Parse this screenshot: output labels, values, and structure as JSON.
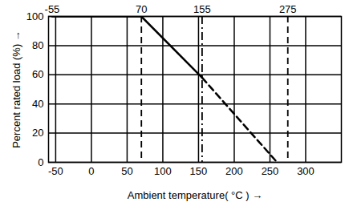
{
  "chart_data": {
    "type": "line",
    "x_label": "Ambient temperature( °C )",
    "y_label": "Percent rated load (%)",
    "xlim": [
      -60,
      350
    ],
    "xticks": [
      -50,
      0,
      50,
      100,
      150,
      200,
      250,
      300
    ],
    "ylim": [
      0,
      100
    ],
    "yticks": [
      0,
      20,
      40,
      60,
      80,
      100
    ],
    "grid": true,
    "series": [
      {
        "color": "#000000",
        "line_style": "solid",
        "x": [
          -55,
          70,
          155
        ],
        "values": [
          100,
          100,
          58
        ]
      },
      {
        "color": "#000000",
        "line_style": "dashed",
        "x": [
          155,
          260
        ],
        "values": [
          58,
          0
        ]
      }
    ],
    "reference_lines": [
      {
        "x": 70,
        "line_style": "dashed"
      },
      {
        "x": 155,
        "line_style": "dashdot"
      },
      {
        "x": 275,
        "line_style": "dashed"
      }
    ],
    "top_labels": [
      -55,
      70,
      155,
      275
    ]
  }
}
